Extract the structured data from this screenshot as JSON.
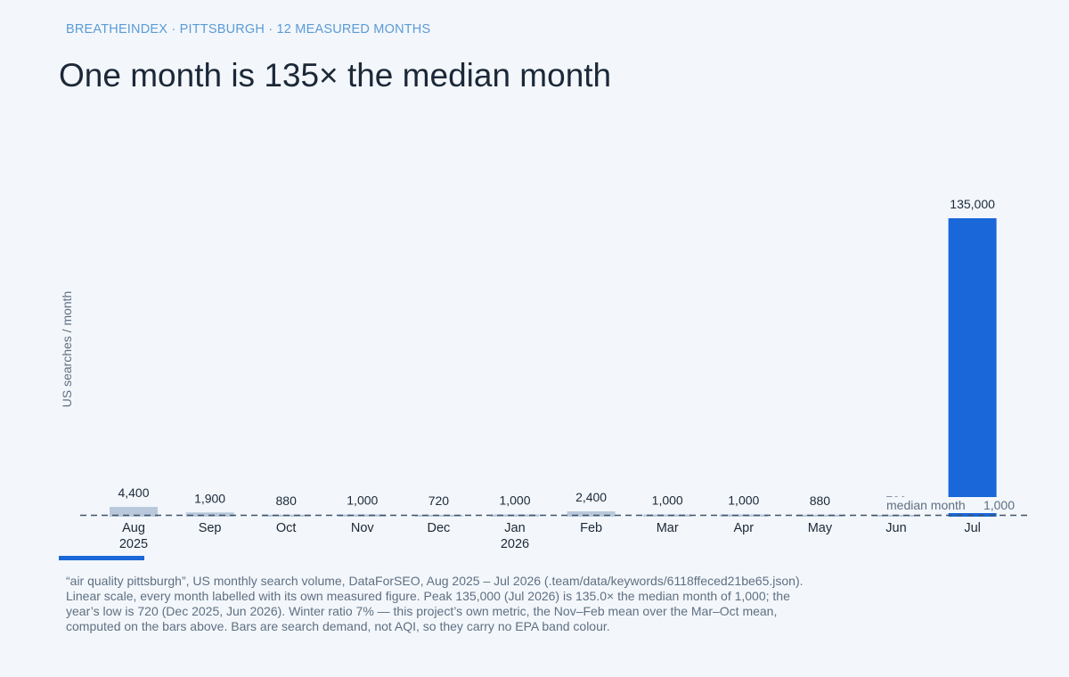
{
  "header": {
    "kicker": "BREATHEINDEX · PITTSBURGH · 12 MEASURED MONTHS",
    "title": "One month is 135× the median month"
  },
  "colors": {
    "background": "#f3f7fb",
    "regular_bar": "#b9c8db",
    "peak_bar": "#1967d9",
    "title_text": "#1c2838",
    "kicker_text": "#5b9bd6",
    "median_line": "#42546a"
  },
  "chart_data": {
    "type": "bar",
    "ylabel": "US searches / month",
    "xlabel": "",
    "ylim": [
      0,
      135000
    ],
    "categories": [
      "Aug",
      "Sep",
      "Oct",
      "Nov",
      "Dec",
      "Jan",
      "Feb",
      "Mar",
      "Apr",
      "May",
      "Jun",
      "Jul"
    ],
    "year_labels": [
      "2025",
      "",
      "",
      "",
      "",
      "2026",
      "",
      "",
      "",
      "",
      "",
      ""
    ],
    "values": [
      4400,
      1900,
      880,
      1000,
      720,
      1000,
      2400,
      1000,
      1000,
      880,
      720,
      135000
    ],
    "value_labels": [
      "4,400",
      "1,900",
      "880",
      "1,000",
      "720",
      "1,000",
      "2,400",
      "1,000",
      "1,000",
      "880",
      "720",
      "135,000"
    ],
    "highlight_index": 11,
    "reference_line": {
      "label": "median month",
      "value": 1000,
      "value_label": "1,000"
    }
  },
  "caption": "“air quality pittsburgh”, US monthly search volume, DataForSEO, Aug 2025 – Jul 2026 (.team/data/keywords/6118ffeced21be65.json). Linear scale, every month labelled with its own measured figure. Peak 135,000 (Jul 2026) is 135.0× the median month of 1,000; the year’s low is 720 (Dec 2025, Jun 2026). Winter ratio 7% — this project’s own metric, the Nov–Feb mean over the Mar–Oct mean, computed on the bars above. Bars are search demand, not AQI, so they carry no EPA band colour."
}
